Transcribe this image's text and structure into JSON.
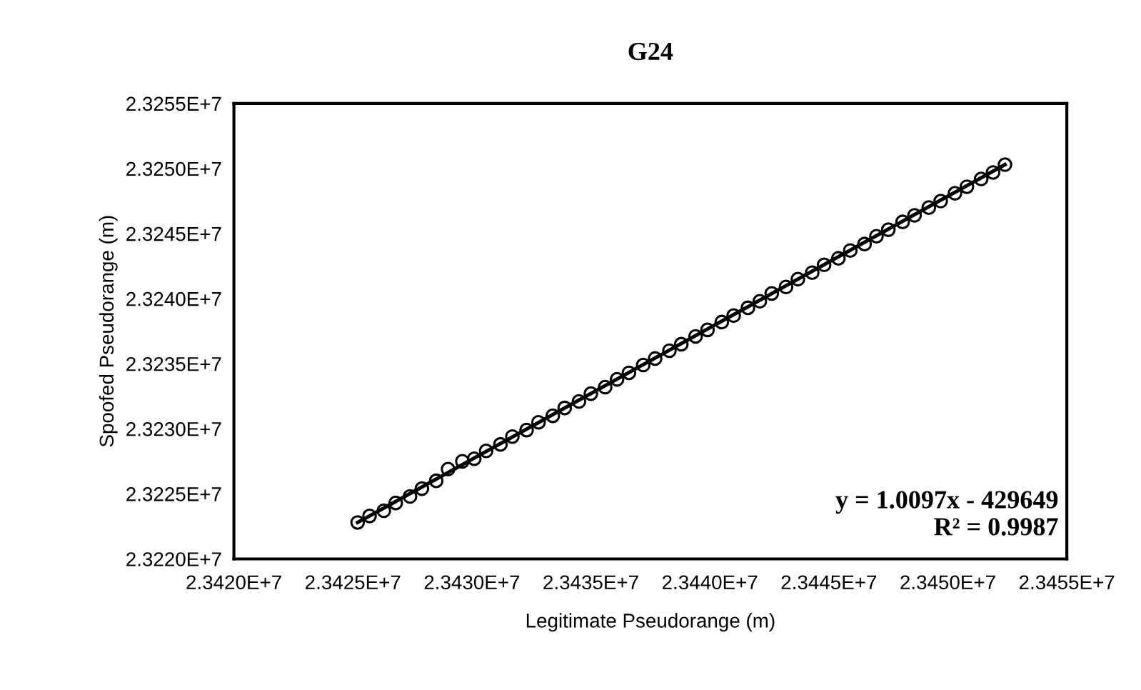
{
  "chart_data": {
    "type": "scatter",
    "title": "G24",
    "xlabel": "Legitimate Pseudorange (m)",
    "ylabel": "Spoofed Pseudorange (m)",
    "annotations": [
      "y = 1.0097x - 429649\nR² = 0.9987"
    ],
    "xlim": [
      23420000,
      23455000
    ],
    "ylim": [
      23220000,
      23255000
    ],
    "xticks": [
      {
        "value": 23420000,
        "label": "2.3420E+7"
      },
      {
        "value": 23425000,
        "label": "2.3425E+7"
      },
      {
        "value": 23430000,
        "label": "2.3430E+7"
      },
      {
        "value": 23435000,
        "label": "2.3435E+7"
      },
      {
        "value": 23440000,
        "label": "2.3440E+7"
      },
      {
        "value": 23445000,
        "label": "2.3445E+7"
      },
      {
        "value": 23450000,
        "label": "2.3450E+7"
      },
      {
        "value": 23455000,
        "label": "2.3455E+7"
      }
    ],
    "yticks": [
      {
        "value": 23220000,
        "label": "2.3220E+7"
      },
      {
        "value": 23225000,
        "label": "2.3225E+7"
      },
      {
        "value": 23230000,
        "label": "2.3230E+7"
      },
      {
        "value": 23235000,
        "label": "2.3235E+7"
      },
      {
        "value": 23240000,
        "label": "2.3240E+7"
      },
      {
        "value": 23245000,
        "label": "2.3245E+7"
      },
      {
        "value": 23250000,
        "label": "2.3250E+7"
      },
      {
        "value": 23255000,
        "label": "2.3255E+7"
      }
    ],
    "grid": false,
    "legend": false,
    "series": [
      {
        "color": "#000000",
        "marker": "circle",
        "x": [
          23425200,
          23425700,
          23426300,
          23426800,
          23427400,
          23427900,
          23428500,
          23429000,
          23429600,
          23430100,
          23430600,
          23431200,
          23431700,
          23432300,
          23432800,
          23433400,
          23433900,
          23434500,
          23435000,
          23435600,
          23436100,
          23436600,
          23437200,
          23437700,
          23438300,
          23438800,
          23439400,
          23439900,
          23440500,
          23441000,
          23441600,
          23442100,
          23442600,
          23443200,
          23443700,
          23444300,
          23444800,
          23445400,
          23445900,
          23446500,
          23447000,
          23447500,
          23448100,
          23448600,
          23449200,
          23449700,
          23450300,
          23450800,
          23451400,
          23451900,
          23452400
        ],
        "values": [
          23222800,
          23223300,
          23223700,
          23224300,
          23224800,
          23225400,
          23226000,
          23226900,
          23227500,
          23227700,
          23228300,
          23228800,
          23229400,
          23229900,
          23230500,
          23231000,
          23231600,
          23232100,
          23232700,
          23233200,
          23233800,
          23234300,
          23234900,
          23235400,
          23236000,
          23236500,
          23237100,
          23237600,
          23238200,
          23238700,
          23239300,
          23239800,
          23240400,
          23240900,
          23241500,
          23242000,
          23242600,
          23243100,
          23243700,
          23244200,
          23244800,
          23245300,
          23245900,
          23246400,
          23247000,
          23247500,
          23248100,
          23248600,
          23249200,
          23249700,
          23250300
        ]
      },
      {
        "type": "line",
        "color": "#000000",
        "marker": "none",
        "line_style": "solid",
        "x": [
          23425200,
          23452400
        ],
        "values": [
          23222800,
          23250300
        ]
      }
    ]
  }
}
